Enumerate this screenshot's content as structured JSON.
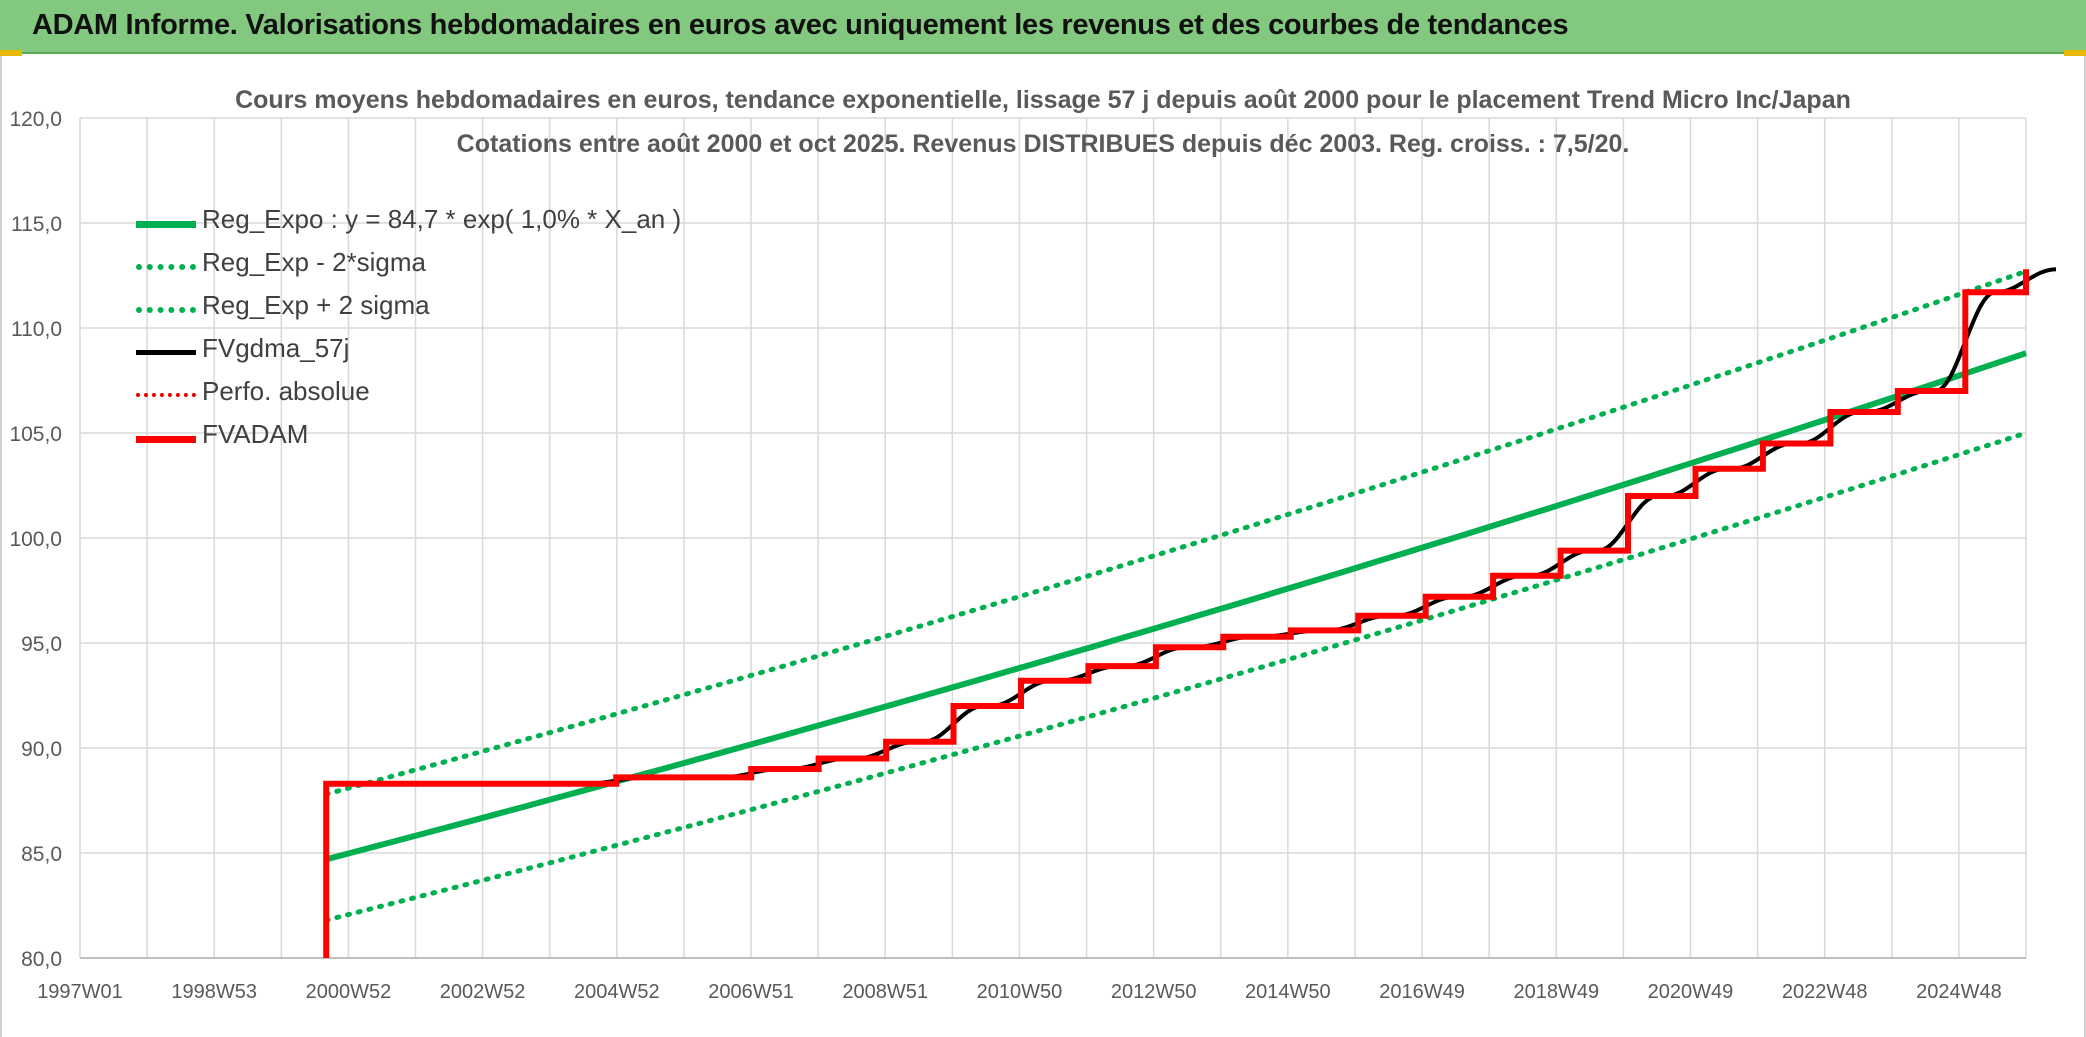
{
  "banner": {
    "title": "ADAM Informe. Valorisations hebdomadaires en euros avec uniquement les revenus et des courbes de tendances"
  },
  "chart": {
    "title_line1": "Cours moyens hebdomadaires en euros, tendance exponentielle, lissage 57 j depuis août 2000 pour le placement Trend Micro Inc/Japan",
    "title_line2": "Cotations entre août 2000 et oct 2025. Revenus DISTRIBUES depuis déc 2003. Reg. croiss. : 7,5/20."
  },
  "legend": [
    {
      "label": "Reg_Expo : y = 84,7 * exp( 1,0% *  X_an )",
      "style": "solid-green"
    },
    {
      "label": "Reg_Exp - 2*sigma",
      "style": "dot-green"
    },
    {
      "label": "Reg_Exp + 2 sigma",
      "style": "dot-green"
    },
    {
      "label": "FVgdma_57j",
      "style": "solid-black"
    },
    {
      "label": "Perfo. absolue",
      "style": "dot-red"
    },
    {
      "label": "FVADAM",
      "style": "solid-red"
    }
  ],
  "colors": {
    "reg": "#00b050",
    "gdma": "#000000",
    "perfo": "#e00000",
    "fvadam": "#ff0000",
    "grid": "#d9d9d9",
    "axis_text": "#595959",
    "banner": "#82c97f"
  },
  "chart_data": {
    "type": "line",
    "x_axis": {
      "min": 1997.0,
      "max": 2025.85,
      "tick_labels": [
        "1997W01",
        "1998W53",
        "2000W52",
        "2002W52",
        "2004W52",
        "2006W51",
        "2008W51",
        "2010W50",
        "2012W50",
        "2014W50",
        "2016W49",
        "2018W49",
        "2020W49",
        "2022W48",
        "2024W48"
      ]
    },
    "y_axis": {
      "min": 80,
      "max": 120,
      "step": 5,
      "tick_labels": [
        "80,0",
        "85,0",
        "90,0",
        "95,0",
        "100,0",
        "105,0",
        "110,0",
        "115,0",
        "120,0"
      ]
    },
    "grid": true,
    "legend_position": "top-left",
    "regression": {
      "name": "Reg_Expo : y = 84,7 * exp( 1,0% *  X_an )",
      "start_year": 2000.65,
      "end_year": 2025.85,
      "start_value": 84.7,
      "end_value": 108.8
    },
    "band_low": {
      "name": "Reg_Exp - 2*sigma",
      "start_value": 81.8,
      "end_value": 105.0
    },
    "band_high": {
      "name": "Reg_Exp + 2 sigma",
      "start_value": 87.8,
      "end_value": 112.7
    },
    "fvadam": {
      "name": "FVADAM",
      "start_value": 80.0,
      "steps": [
        {
          "year": 2000.65,
          "value": 88.3
        },
        {
          "year": 2004.95,
          "value": 88.6
        },
        {
          "year": 2006.95,
          "value": 89.0
        },
        {
          "year": 2007.95,
          "value": 89.5
        },
        {
          "year": 2008.95,
          "value": 90.3
        },
        {
          "year": 2009.95,
          "value": 92.0
        },
        {
          "year": 2010.95,
          "value": 93.2
        },
        {
          "year": 2011.95,
          "value": 93.9
        },
        {
          "year": 2012.95,
          "value": 94.8
        },
        {
          "year": 2013.95,
          "value": 95.3
        },
        {
          "year": 2014.95,
          "value": 95.6
        },
        {
          "year": 2015.95,
          "value": 96.3
        },
        {
          "year": 2016.95,
          "value": 97.2
        },
        {
          "year": 2017.95,
          "value": 98.2
        },
        {
          "year": 2018.95,
          "value": 99.4
        },
        {
          "year": 2019.95,
          "value": 102.0
        },
        {
          "year": 2020.95,
          "value": 103.3
        },
        {
          "year": 2021.95,
          "value": 104.5
        },
        {
          "year": 2022.95,
          "value": 106.0
        },
        {
          "year": 2023.95,
          "value": 107.0
        },
        {
          "year": 2024.95,
          "value": 111.7
        },
        {
          "year": 2025.85,
          "value": 112.8
        }
      ]
    }
  }
}
